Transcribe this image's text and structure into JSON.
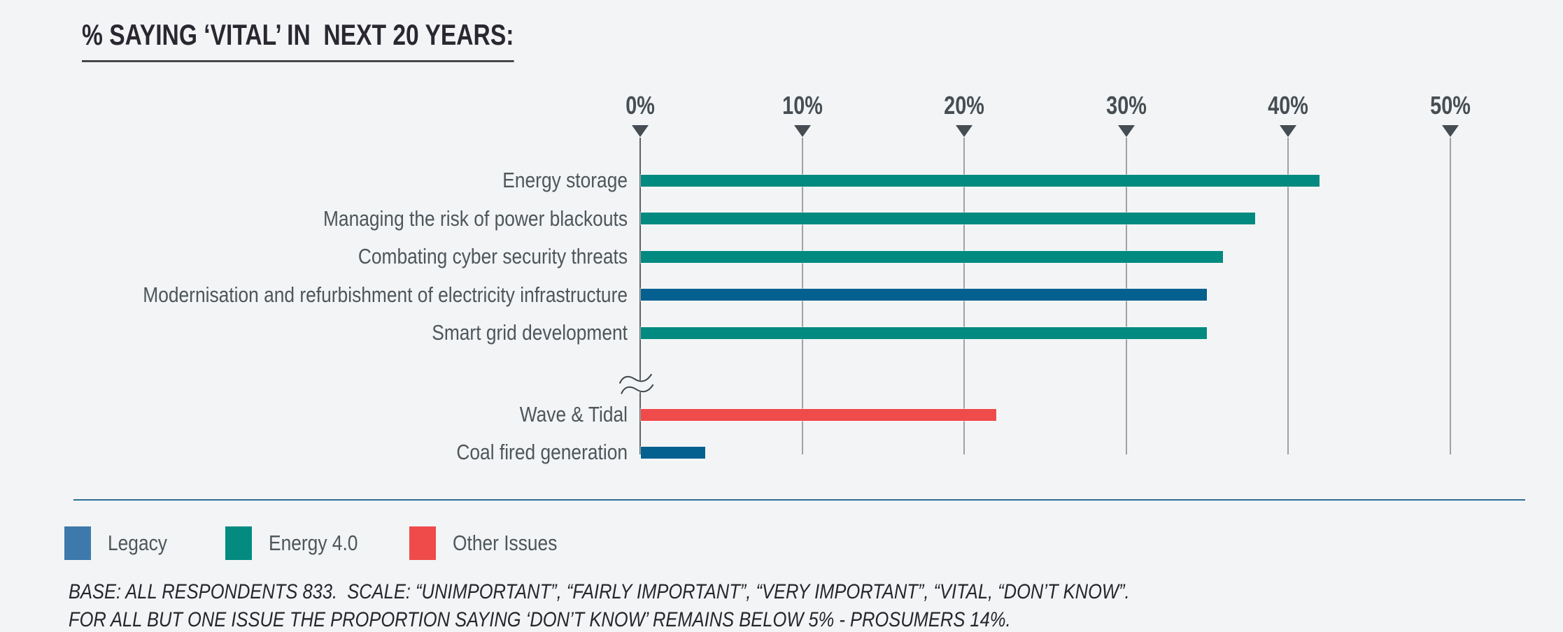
{
  "title": "% SAYING ‘VITAL’ IN  NEXT 20 YEARS:",
  "chart_data": {
    "type": "bar",
    "orientation": "horizontal",
    "title": "% SAYING ‘VITAL’ IN  NEXT 20 YEARS:",
    "x_ticks": [
      "0%",
      "10%",
      "20%",
      "30%",
      "40%",
      "50%"
    ],
    "x_range": [
      0,
      50
    ],
    "unit": "%",
    "grid": true,
    "axis_break_after_index": 4,
    "rows": [
      {
        "label": "Energy storage",
        "value": 42,
        "group": "energy40"
      },
      {
        "label": "Managing the risk of power blackouts",
        "value": 38,
        "group": "energy40"
      },
      {
        "label": "Combating cyber security threats",
        "value": 36,
        "group": "energy40"
      },
      {
        "label": "Modernisation and refurbishment of electricity infrastructure",
        "value": 35,
        "group": "legacy"
      },
      {
        "label": "Smart grid development",
        "value": 35,
        "group": "energy40"
      },
      {
        "label": "Wave & Tidal",
        "value": 22,
        "group": "other"
      },
      {
        "label": "Coal fired generation",
        "value": 4,
        "group": "legacy"
      }
    ],
    "groups": {
      "legacy": {
        "label": "Legacy",
        "bar_color": "#04608F",
        "legend_color": "#3E79AB"
      },
      "energy40": {
        "label": "Energy 4.0",
        "bar_color": "#038A80",
        "legend_color": "#048B80"
      },
      "other": {
        "label": "Other Issues",
        "bar_color": "#EF4B4B",
        "legend_color": "#EF4B4B"
      }
    },
    "legend": {
      "position": "bottom-left",
      "order": [
        "legacy",
        "energy40",
        "other"
      ]
    }
  },
  "footnotes": {
    "line1": "BASE: ALL RESPONDENTS 833.  SCALE: “UNIMPORTANT”, “FAIRLY IMPORTANT”, “VERY IMPORTANT”, “VITAL, “DON’T KNOW”.",
    "line2": "FOR ALL BUT ONE ISSUE THE PROPORTION SAYING ‘DON’T KNOW’ REMAINS BELOW 5% - PROSUMERS 14%."
  },
  "colors": {
    "background": "#F2F4F5",
    "grid_line": "#9EA2A5",
    "axis_line": "#5D6266",
    "tick_marker": "#454C52",
    "tick_text": "#464E54",
    "row_label_text": "#4E565B",
    "title_text": "#2A2731",
    "title_underline": "#47474A",
    "divider": "#2E6E99",
    "footnote_text": "#26262C"
  }
}
